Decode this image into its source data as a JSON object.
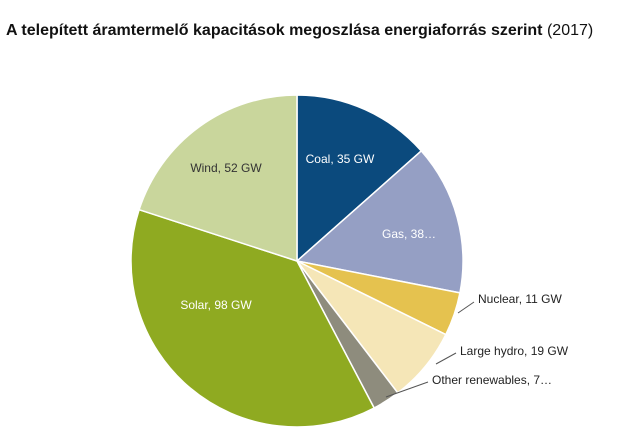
{
  "title": {
    "main": "A telepített áramtermelő kapacitások megoszlása energiaforrás szerint",
    "year": "(2017)"
  },
  "chart_data": {
    "type": "pie",
    "unit": "GW",
    "slices": [
      {
        "category": "Coal",
        "value": 35,
        "label": "Coal, 35 GW",
        "color": "#0b4a7d",
        "label_color": "#ffffff",
        "label_position": "inside"
      },
      {
        "category": "Gas",
        "value": 38,
        "label": "Gas, 38…",
        "color": "#959fc4",
        "label_color": "#ffffff",
        "label_position": "inside"
      },
      {
        "category": "Nuclear",
        "value": 11,
        "label": "Nuclear, 11 GW",
        "color": "#e5c24f",
        "label_color": "#222222",
        "label_position": "outside"
      },
      {
        "category": "Large hydro",
        "value": 19,
        "label": "Large hydro, 19 GW",
        "color": "#f5e6b7",
        "label_color": "#222222",
        "label_position": "outside"
      },
      {
        "category": "Other renewables",
        "value": 7,
        "label": "Other renewables, 7…",
        "color": "#8e8c7d",
        "label_color": "#222222",
        "label_position": "outside"
      },
      {
        "category": "Solar",
        "value": 98,
        "label": "Solar, 98 GW",
        "color": "#8faa21",
        "label_color": "#ffffff",
        "label_position": "inside"
      },
      {
        "category": "Wind",
        "value": 52,
        "label": "Wind, 52 GW",
        "color": "#c9d69c",
        "label_color": "#333333",
        "label_position": "inside"
      }
    ],
    "start_angle": "12 o'clock",
    "direction": "clockwise",
    "legend": "none"
  }
}
